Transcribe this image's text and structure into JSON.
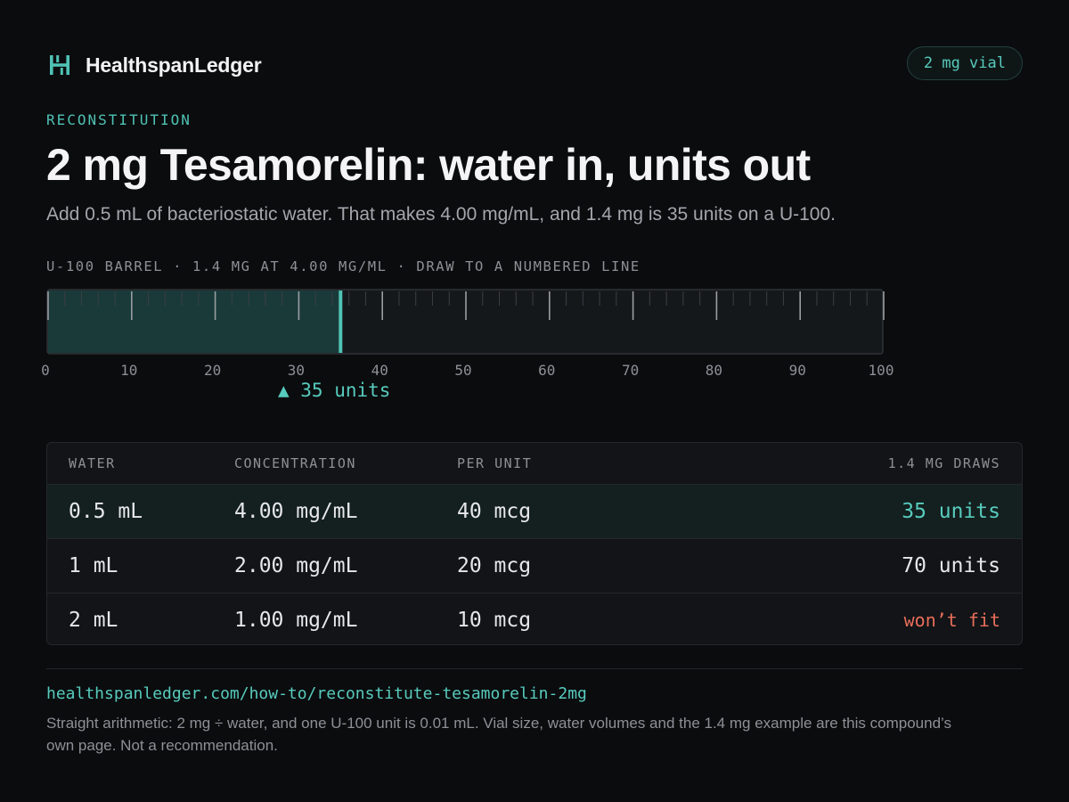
{
  "brand": {
    "name": "HealthspanLedger",
    "logo_icon": "brand-h-logo-icon"
  },
  "vial_badge": "2 mg vial",
  "eyebrow": "RECONSTITUTION",
  "title": "2 mg Tesamorelin: water in, units out",
  "subtitle": "Add 0.5 mL of bacteriostatic water. That makes 4.00 mg/mL, and 1.4 mg is 35 units on a U-100.",
  "syringe": {
    "caption": "U-100 BARREL · 1.4 MG AT 4.00 MG/ML · DRAW TO A NUMBERED LINE",
    "max_units": 100,
    "fill_units": 35,
    "tick_labels": [
      "0",
      "10",
      "20",
      "30",
      "40",
      "50",
      "60",
      "70",
      "80",
      "90",
      "100"
    ],
    "draw_label": "▲ 35 units"
  },
  "table": {
    "headers": [
      "WATER",
      "CONCENTRATION",
      "PER UNIT",
      "1.4 MG DRAWS"
    ],
    "rows": [
      {
        "water": "0.5 mL",
        "concentration": "4.00 mg/mL",
        "per_unit": "40 mcg",
        "draws": "35 units",
        "status": "ok"
      },
      {
        "water": "1 mL",
        "concentration": "2.00 mg/mL",
        "per_unit": "20 mcg",
        "draws": "70 units",
        "status": "plain"
      },
      {
        "water": "2 mL",
        "concentration": "1.00 mg/mL",
        "per_unit": "10 mcg",
        "draws": "won’t fit",
        "status": "bad"
      }
    ]
  },
  "footer": {
    "url": "healthspanledger.com/how-to/reconstitute-tesamorelin-2mg",
    "note": "Straight arithmetic: 2 mg ÷ water, and one U-100 unit is 0.01 mL. Vial size, water volumes and the 1.4 mg example are this compound’s own page. Not a recommendation."
  },
  "colors": {
    "accent": "#57cbbd",
    "warning": "#e86e5a",
    "background": "#0b0c0e"
  }
}
